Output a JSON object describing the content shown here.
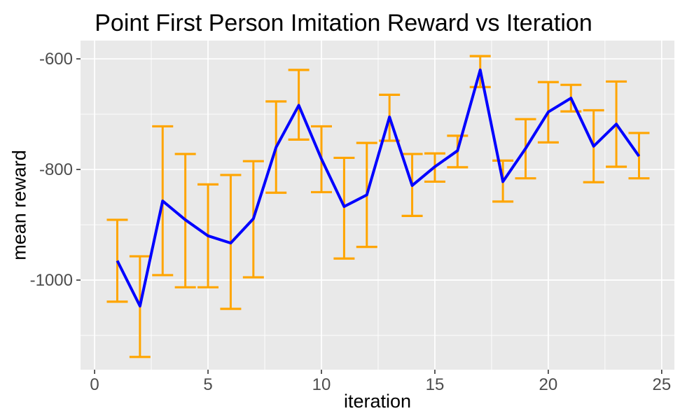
{
  "chart_data": {
    "type": "line",
    "title": "Point First Person Imitation Reward vs Iteration",
    "xlabel": "iteration",
    "ylabel": "mean reward",
    "x": [
      1,
      2,
      3,
      4,
      5,
      6,
      7,
      8,
      9,
      10,
      11,
      12,
      13,
      14,
      15,
      16,
      17,
      18,
      19,
      20,
      21,
      22,
      23,
      24
    ],
    "series": [
      {
        "name": "mean reward",
        "values": [
          -965,
          -1047,
          -857,
          -891,
          -920,
          -933,
          -889,
          -760,
          -684,
          -781,
          -867,
          -846,
          -705,
          -829,
          -795,
          -766,
          -620,
          -822,
          -762,
          -696,
          -671,
          -758,
          -718,
          -776
        ]
      }
    ],
    "error_bars": {
      "lower": [
        -1039,
        -1139,
        -991,
        -1013,
        -1013,
        -1052,
        -995,
        -842,
        -746,
        -841,
        -961,
        -940,
        -748,
        -884,
        -822,
        -796,
        -651,
        -858,
        -816,
        -751,
        -695,
        -823,
        -795,
        -816
      ],
      "upper": [
        -891,
        -957,
        -722,
        -772,
        -827,
        -810,
        -785,
        -677,
        -620,
        -722,
        -779,
        -752,
        -665,
        -772,
        -771,
        -739,
        -595,
        -784,
        -709,
        -642,
        -647,
        -693,
        -641,
        -734
      ]
    },
    "x_ticks": [
      0,
      5,
      10,
      15,
      20,
      25
    ],
    "x_tick_labels": [
      "0",
      "5",
      "10",
      "15",
      "20",
      "25"
    ],
    "x_minor_ticks": [
      2.5,
      7.5,
      12.5,
      17.5,
      22.5
    ],
    "y_ticks": [
      -600,
      -800,
      -1000
    ],
    "y_tick_labels": [
      "-600",
      "-800",
      "-1000"
    ],
    "y_minor_ticks": [
      -700,
      -900,
      -1100
    ],
    "xlim": [
      -0.62,
      25.56
    ],
    "ylim": [
      -1162,
      -567
    ],
    "grid": "on",
    "legend": "none",
    "colors": {
      "line": "#0000FF",
      "error_bar": "#FFA500",
      "panel_bg": "#E9E9E9",
      "grid": "#FFFFFF",
      "tick_mark": "#333333",
      "tick_label": "#4D4D4D",
      "title": "#000000",
      "axis_title": "#000000"
    }
  }
}
